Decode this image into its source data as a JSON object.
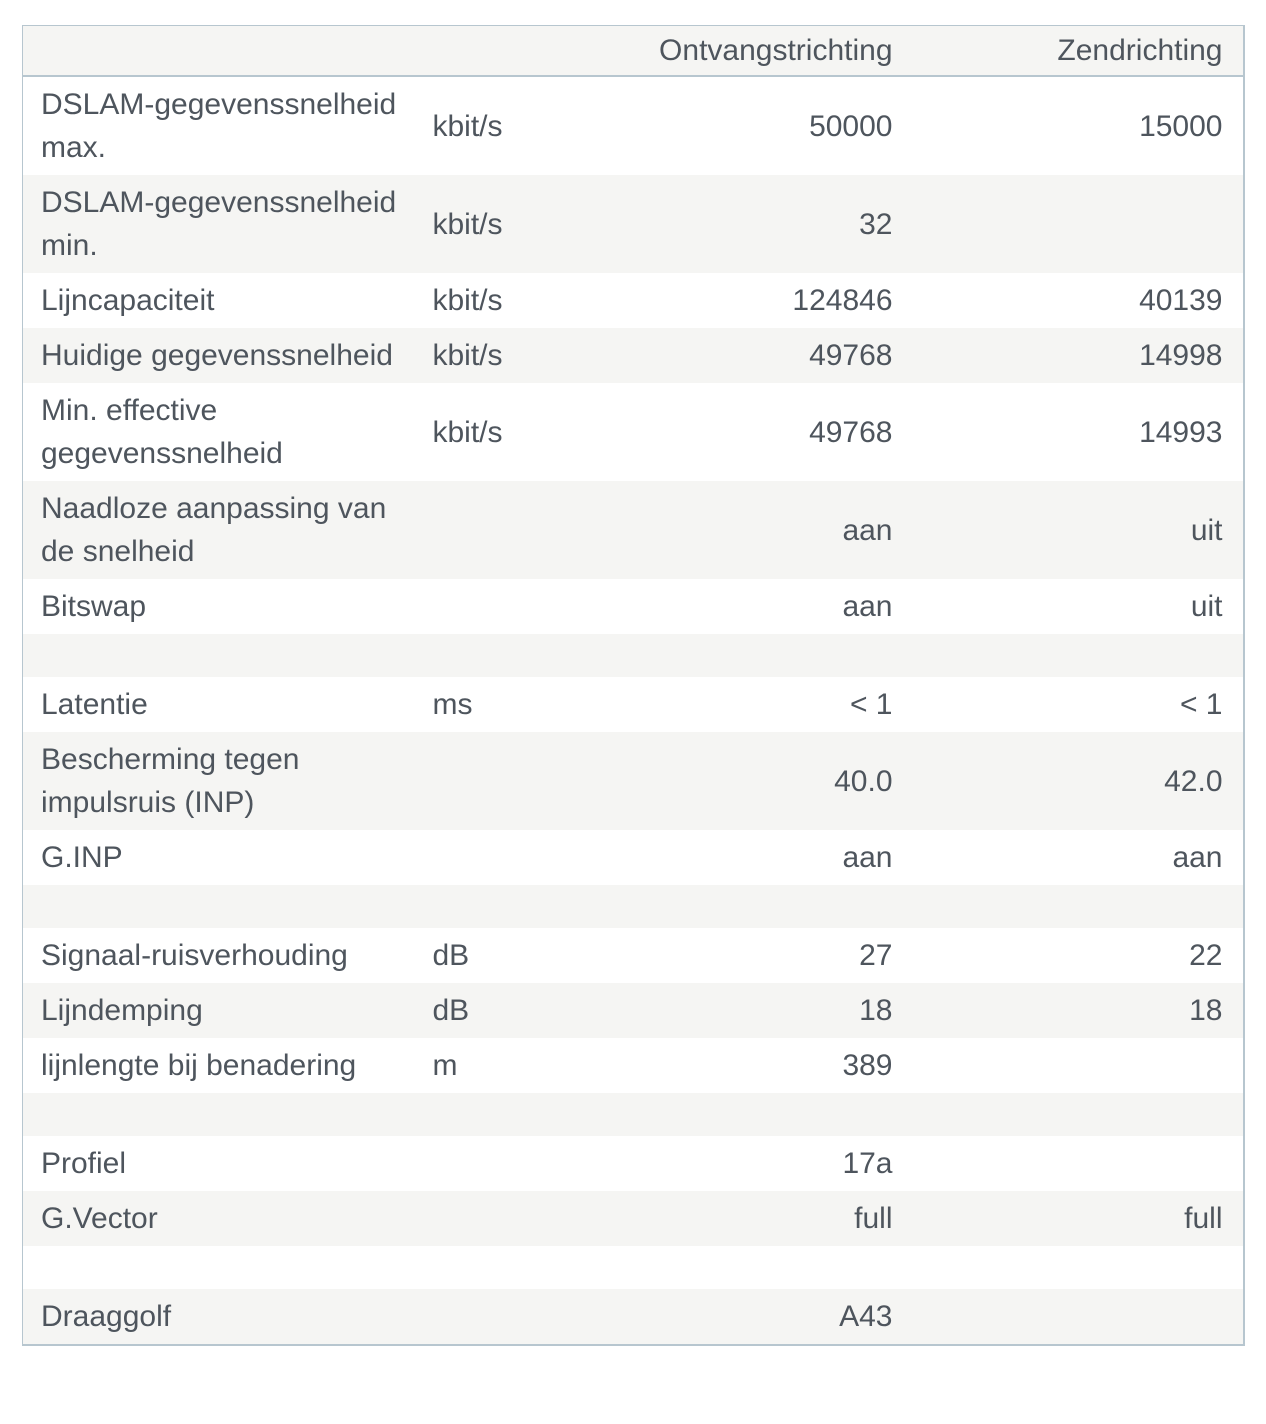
{
  "header": {
    "receive": "Ontvangstrichting",
    "send": "Zendrichting"
  },
  "rows": [
    {
      "label": "DSLAM-gegevenssnelheid max.",
      "unit": "kbit/s",
      "rx": "50000",
      "tx": "15000"
    },
    {
      "label": "DSLAM-gegevenssnelheid min.",
      "unit": "kbit/s",
      "rx": "32",
      "tx": ""
    },
    {
      "label": "Lijncapaciteit",
      "unit": "kbit/s",
      "rx": "124846",
      "tx": "40139"
    },
    {
      "label": "Huidige gegevenssnelheid",
      "unit": "kbit/s",
      "rx": "49768",
      "tx": "14998"
    },
    {
      "label": "Min. effective gegevenssnelheid",
      "unit": "kbit/s",
      "rx": "49768",
      "tx": "14993"
    },
    {
      "label": "Naadloze aanpassing van de snelheid",
      "unit": "",
      "rx": "aan",
      "tx": "uit"
    },
    {
      "label": "Bitswap",
      "unit": "",
      "rx": "aan",
      "tx": "uit"
    },
    {
      "label": "",
      "unit": "",
      "rx": "",
      "tx": ""
    },
    {
      "label": "Latentie",
      "unit": "ms",
      "rx": "< 1",
      "tx": "< 1"
    },
    {
      "label": "Bescherming tegen impulsruis (INP)",
      "unit": "",
      "rx": "40.0",
      "tx": "42.0"
    },
    {
      "label": "G.INP",
      "unit": "",
      "rx": "aan",
      "tx": "aan"
    },
    {
      "label": "",
      "unit": "",
      "rx": "",
      "tx": ""
    },
    {
      "label": "Signaal-ruisverhouding",
      "unit": "dB",
      "rx": "27",
      "tx": "22"
    },
    {
      "label": "Lijndemping",
      "unit": "dB",
      "rx": "18",
      "tx": "18"
    },
    {
      "label": "lijnlengte bij benadering",
      "unit": "m",
      "rx": "389",
      "tx": ""
    },
    {
      "label": "",
      "unit": "",
      "rx": "",
      "tx": ""
    },
    {
      "label": "Profiel",
      "unit": "",
      "rx": "17a",
      "tx": ""
    },
    {
      "label": "G.Vector",
      "unit": "",
      "rx": "full",
      "tx": "full"
    },
    {
      "label": "",
      "unit": "",
      "rx": "",
      "tx": ""
    },
    {
      "label": "Draaggolf",
      "unit": "",
      "rx": "A43",
      "tx": ""
    }
  ],
  "colors": {
    "row_bg": "#ffffff",
    "row_alt_bg": "#f5f5f3",
    "border": "#b7c6cf",
    "text": "#4e555d"
  }
}
